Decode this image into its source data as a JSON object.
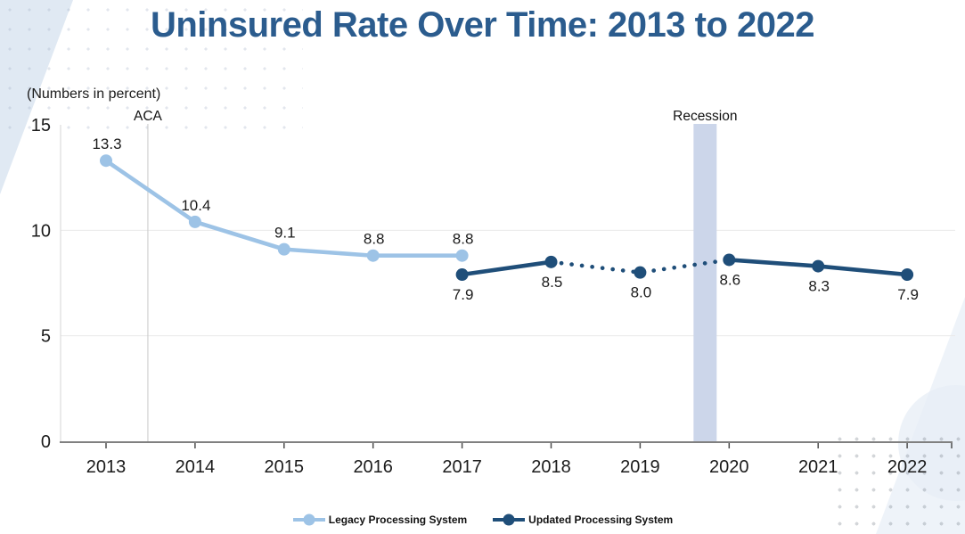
{
  "page": {
    "title": "Uninsured Rate Over Time: 2013 to 2022",
    "subtitle": "(Numbers in percent)"
  },
  "colors": {
    "title_blue": "#2b5c8e",
    "legacy_series": "#9DC3E6",
    "updated_series": "#1F4E79",
    "recession_band": "#ccd6ea",
    "aca_line": "#c8c8c8",
    "axis_line": "#808080",
    "gridline": "#e9e9e9"
  },
  "chart_data": {
    "type": "line",
    "title": "Uninsured Rate Over Time: 2013 to 2022",
    "subtitle": "(Numbers in percent)",
    "xlabel": "",
    "ylabel": "",
    "x_ticks": [
      2013,
      2014,
      2015,
      2016,
      2017,
      2018,
      2019,
      2020,
      2021,
      2022
    ],
    "ylim": [
      0,
      15
    ],
    "y_ticks": [
      0,
      5,
      10,
      15
    ],
    "grid_y_ticks": [
      5,
      10
    ],
    "legend_position": "bottom",
    "series": [
      {
        "name": "Legacy Processing System",
        "color": "#9DC3E6",
        "label_position": "above",
        "points": [
          {
            "x": 2013,
            "y": 13.3,
            "label": "13.3"
          },
          {
            "x": 2014,
            "y": 10.4,
            "label": "10.4"
          },
          {
            "x": 2015,
            "y": 9.1,
            "label": "9.1"
          },
          {
            "x": 2016,
            "y": 8.8,
            "label": "8.8"
          },
          {
            "x": 2017,
            "y": 8.8,
            "label": "8.8"
          }
        ],
        "segments": [
          {
            "from": 2013,
            "to": 2017,
            "style": "solid"
          }
        ]
      },
      {
        "name": "Updated Processing System",
        "color": "#1F4E79",
        "label_position": "below",
        "points": [
          {
            "x": 2017,
            "y": 7.9,
            "label": "7.9"
          },
          {
            "x": 2018,
            "y": 8.5,
            "label": "8.5"
          },
          {
            "x": 2019,
            "y": 8.0,
            "label": "8.0"
          },
          {
            "x": 2020,
            "y": 8.6,
            "label": "8.6"
          },
          {
            "x": 2021,
            "y": 8.3,
            "label": "8.3"
          },
          {
            "x": 2022,
            "y": 7.9,
            "label": "7.9"
          }
        ],
        "segments": [
          {
            "from": 2017,
            "to": 2018,
            "style": "solid"
          },
          {
            "from": 2018,
            "to": 2020,
            "style": "dotted"
          },
          {
            "from": 2020,
            "to": 2022,
            "style": "solid"
          }
        ]
      }
    ],
    "annotations": [
      {
        "type": "vline",
        "label": "ACA",
        "x": 2013.47
      },
      {
        "type": "band",
        "label": "Recession",
        "x_start": 2019.6,
        "x_end": 2019.86
      }
    ]
  }
}
